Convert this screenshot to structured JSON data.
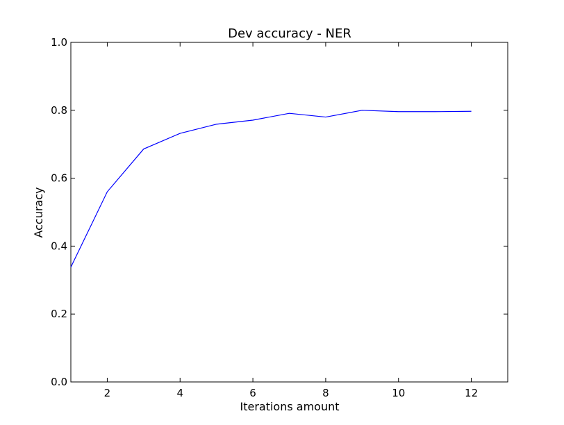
{
  "chart_data": {
    "type": "line",
    "title": "Dev accuracy - NER",
    "xlabel": "Iterations amount",
    "ylabel": "Accuracy",
    "xlim": [
      1,
      13
    ],
    "ylim": [
      0.0,
      1.0
    ],
    "xticks": [
      2,
      4,
      6,
      8,
      10,
      12
    ],
    "xtick_labels": [
      "2",
      "4",
      "6",
      "8",
      "10",
      "12"
    ],
    "yticks": [
      0.0,
      0.2,
      0.4,
      0.6,
      0.8,
      1.0
    ],
    "ytick_labels": [
      "0.0",
      "0.2",
      "0.4",
      "0.6",
      "0.8",
      "1.0"
    ],
    "grid": false,
    "series": [
      {
        "name": "dev accuracy",
        "color": "#0000ff",
        "x": [
          1,
          2,
          3,
          4,
          5,
          6,
          7,
          8,
          9,
          10,
          11,
          12
        ],
        "y": [
          0.338,
          0.56,
          0.686,
          0.732,
          0.759,
          0.771,
          0.791,
          0.78,
          0.8,
          0.796,
          0.796,
          0.797
        ]
      }
    ]
  }
}
